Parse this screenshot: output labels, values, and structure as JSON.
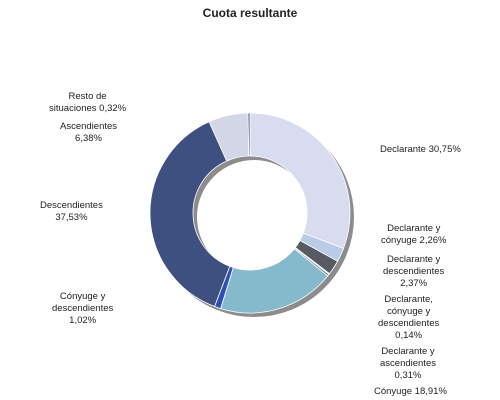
{
  "chart_data": {
    "type": "pie",
    "variant": "donut",
    "title": "Cuota resultante",
    "unit": "%",
    "grid": false,
    "legend": "none",
    "slices": [
      {
        "name": "Declarante",
        "value": 30.75,
        "label": "Declarante 30,75%",
        "color": "#d8dcee"
      },
      {
        "name": "Declarante y cónyuge",
        "value": 2.26,
        "label": "Declarante y\ncónyuge 2,26%",
        "color": "#b9cbe6"
      },
      {
        "name": "Declarante y descendientes",
        "value": 2.37,
        "label": "Declarante y\ndescendientes\n2,37%",
        "color": "#555a63"
      },
      {
        "name": "Declarante, cónyuge y descendientes",
        "value": 0.14,
        "label": "Declarante,\ncónyuge y\ndescendientes\n0,14%",
        "color": "#8a8f99"
      },
      {
        "name": "Declarante y ascendientes",
        "value": 0.31,
        "label": "Declarante y\nascendientes\n0,31%",
        "color": "#6d7a8c"
      },
      {
        "name": "Cónyuge",
        "value": 18.91,
        "label": "Cónyuge 18,91%",
        "color": "#85b9cc"
      },
      {
        "name": "Cónyuge y descendientes",
        "value": 1.02,
        "label": "Cónyuge y\ndescendientes\n1,02%",
        "color": "#2f4fb3"
      },
      {
        "name": "Descendientes",
        "value": 37.53,
        "label": "Descendientes\n37,53%",
        "color": "#3d5080"
      },
      {
        "name": "Ascendientes",
        "value": 6.38,
        "label": "Ascendientes\n6,38%",
        "color": "#d2d6e6"
      },
      {
        "name": "Resto de situaciones",
        "value": 0.32,
        "label": "Resto de\nsituaciones 0,32%",
        "color": "#4e5f8a"
      }
    ]
  }
}
